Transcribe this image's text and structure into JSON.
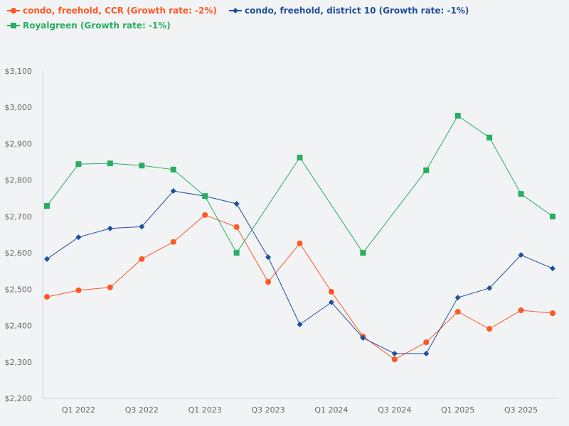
{
  "chart_data": {
    "type": "line",
    "categories": [
      "Q4 2021",
      "Q1 2022",
      "Q2 2022",
      "Q3 2022",
      "Q4 2022",
      "Q1 2023",
      "Q2 2023",
      "Q3 2023",
      "Q4 2023",
      "Q1 2024",
      "Q2 2024",
      "Q3 2024",
      "Q4 2024",
      "Q1 2025",
      "Q2 2025",
      "Q3 2025",
      "Q4 2025"
    ],
    "x_tick_labels": [
      "Q1 2022",
      "Q3 2022",
      "Q1 2023",
      "Q3 2023",
      "Q1 2024",
      "Q3 2024",
      "Q1 2025",
      "Q3 2025"
    ],
    "y_tick_labels": [
      "$2,200",
      "$2,300",
      "$2,400",
      "$2,500",
      "$2,600",
      "$2,700",
      "$2,800",
      "$2,900",
      "$3,000",
      "$3,100"
    ],
    "ylim": [
      2200,
      3100
    ],
    "grid": false,
    "legend_position": "top-left",
    "series": [
      {
        "name": "condo, freehold, CCR (Growth rate: -2%)",
        "color": "#ff5722",
        "marker": "circle",
        "values": [
          2479,
          2497,
          2505,
          2583,
          2630,
          2704,
          2671,
          2520,
          2626,
          2493,
          2370,
          2307,
          2354,
          2438,
          2391,
          2442,
          2434
        ]
      },
      {
        "name": "condo, freehold, district 10 (Growth rate: -1%)",
        "color": "#1f4e9c",
        "marker": "diamond",
        "values": [
          2583,
          2643,
          2667,
          2672,
          2770,
          2756,
          2735,
          2588,
          2403,
          2464,
          2366,
          2323,
          2323,
          2477,
          2503,
          2594,
          2557
        ]
      },
      {
        "name": "Royalgreen (Growth rate: -1%)",
        "color": "#27ae60",
        "marker": "square",
        "values": [
          2729,
          2844,
          2846,
          2840,
          2829,
          2756,
          2600,
          null,
          2862,
          null,
          2600,
          null,
          2827,
          2977,
          2917,
          2762,
          2700
        ]
      }
    ]
  }
}
